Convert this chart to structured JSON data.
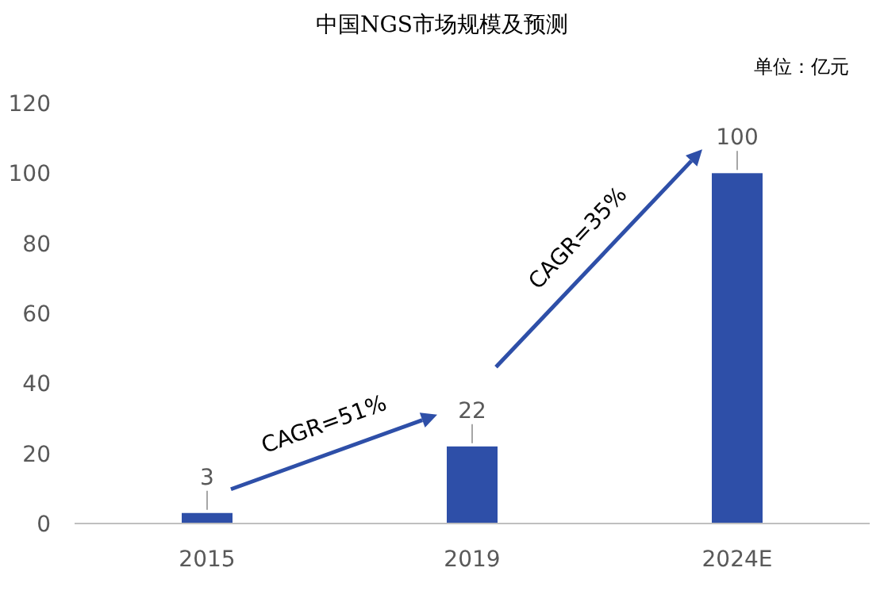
{
  "chart_data": {
    "type": "bar",
    "title": "中国NGS市场规模及预测",
    "subtitle": "单位：亿元",
    "categories": [
      "2015",
      "2019",
      "2024E"
    ],
    "values": [
      3,
      22,
      100
    ],
    "color": "#2e4fa8",
    "ylim": [
      0,
      120
    ],
    "yticks": [
      0,
      20,
      40,
      60,
      80,
      100,
      120
    ],
    "grid": false,
    "data_labels": true,
    "annotations": [
      "CAGR=51%",
      "CAGR=35%"
    ]
  }
}
